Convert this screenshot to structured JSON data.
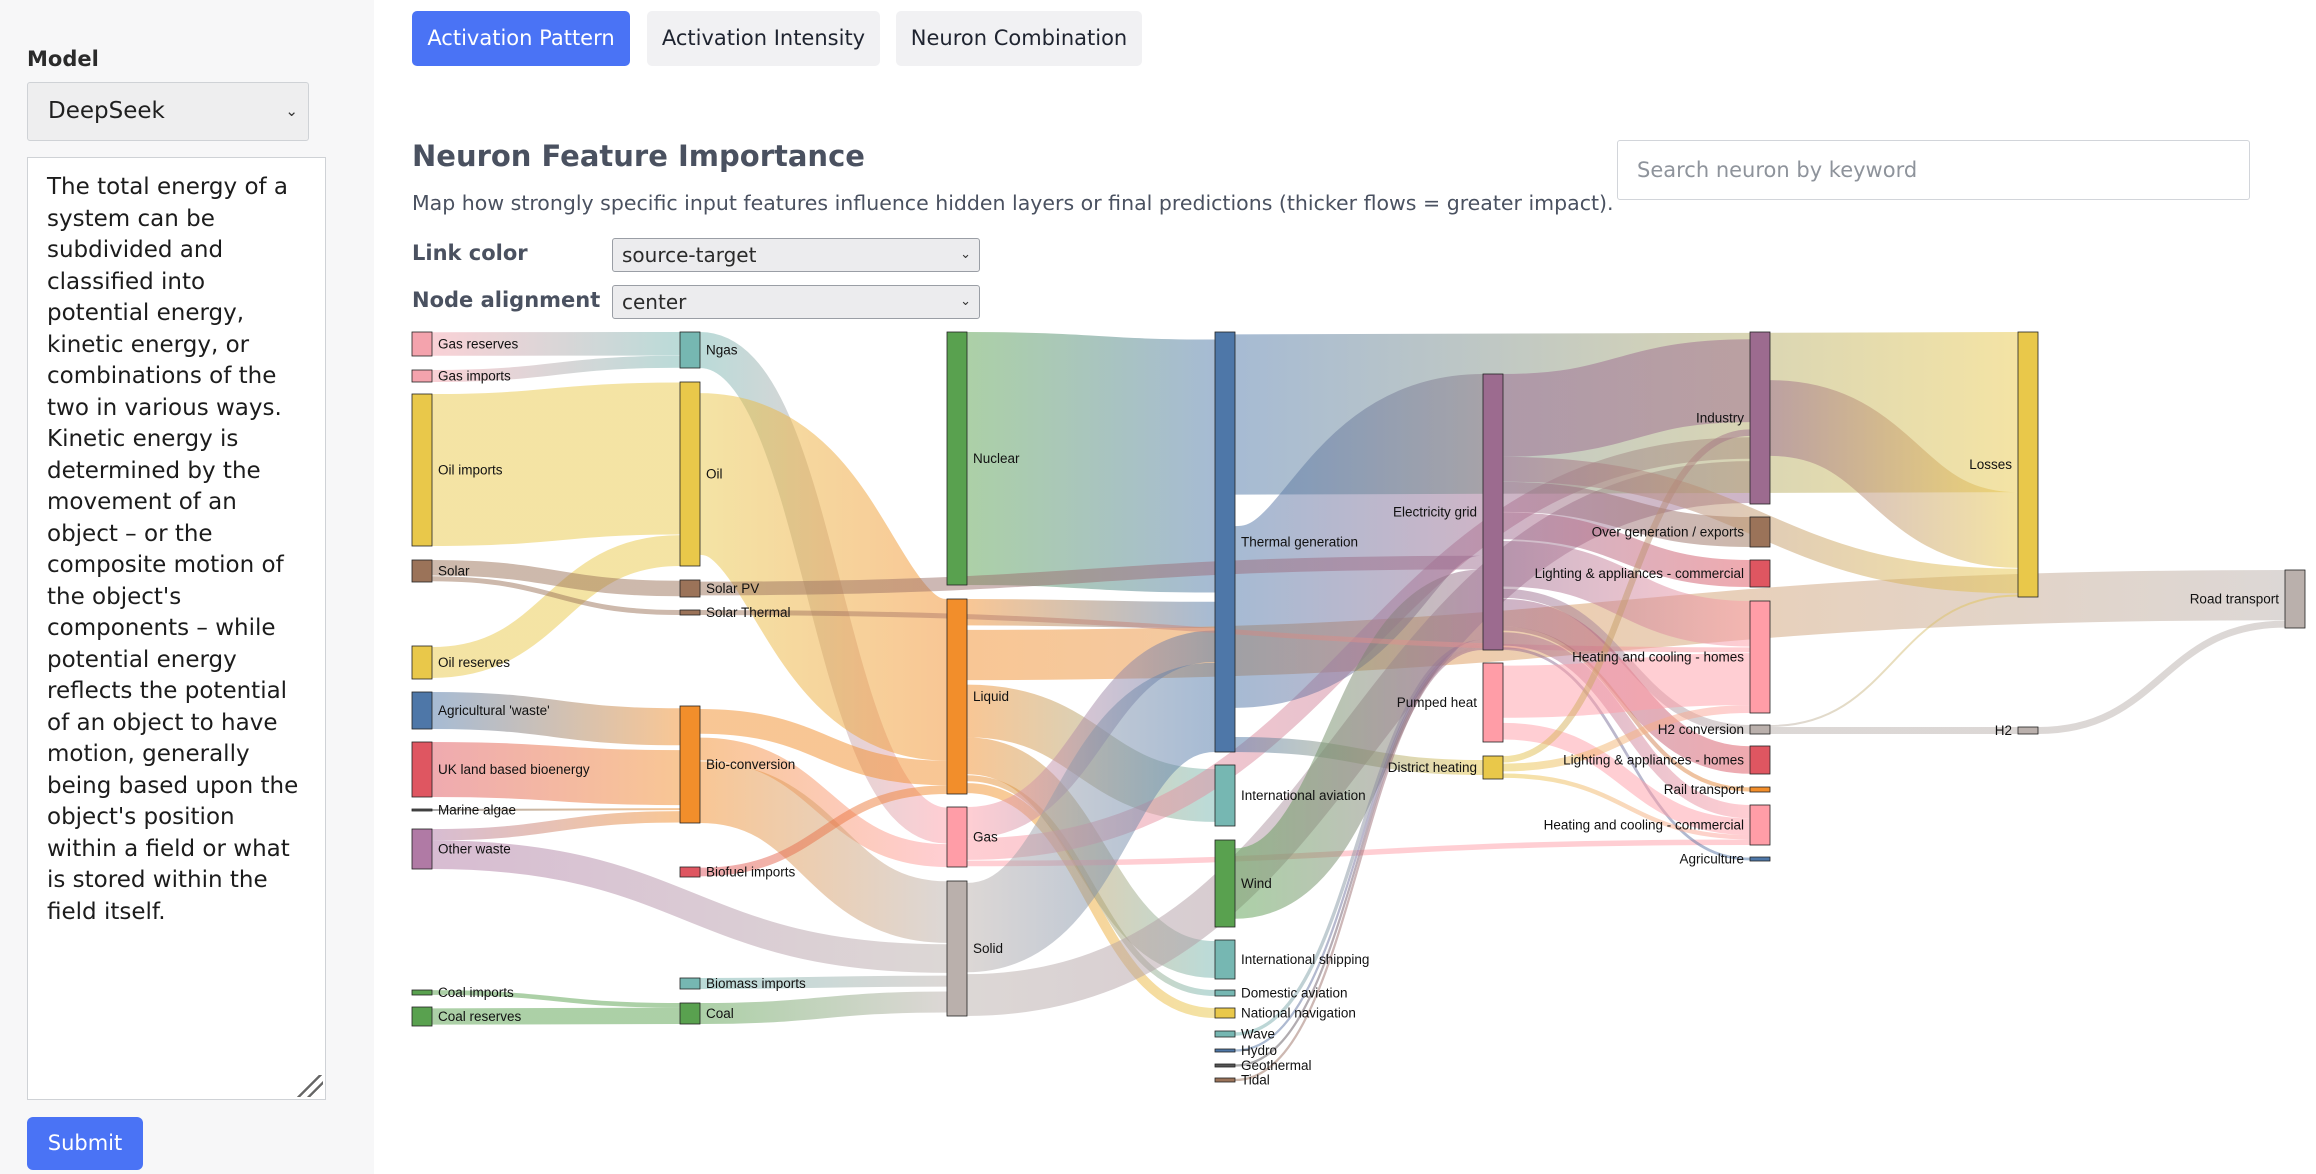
{
  "sidebar": {
    "model_label": "Model",
    "model_value": "DeepSeek",
    "prompt_text": "The total energy of a system can be subdivided and classified into potential energy, kinetic energy, or combinations of the two in various ways. Kinetic energy is determined by the movement of an object – or the composite motion of the object's components – while potential energy reflects the potential of an object to have motion, generally being based upon the object's position within a field or what is stored within the field itself.",
    "submit_label": "Submit"
  },
  "tabs": [
    {
      "label": "Activation Pattern",
      "active": true
    },
    {
      "label": "Activation Intensity",
      "active": false
    },
    {
      "label": "Neuron Combination",
      "active": false
    }
  ],
  "section": {
    "title": "Neuron Feature Importance",
    "description": "Map how strongly specific input features influence hidden layers or final predictions (thicker flows = greater impact)."
  },
  "search": {
    "placeholder": "Search neuron by keyword"
  },
  "controls": {
    "link_color_label": "Link color",
    "link_color_value": "source-target",
    "node_alignment_label": "Node alignment",
    "node_alignment_value": "center"
  },
  "sankey": {
    "nodes": [
      {
        "name": "Gas reserves",
        "color": "#f4a3ad"
      },
      {
        "name": "Gas imports",
        "color": "#f4a3ad"
      },
      {
        "name": "Oil imports",
        "color": "#e9c84a"
      },
      {
        "name": "Solar",
        "color": "#9b7359"
      },
      {
        "name": "Oil reserves",
        "color": "#e9c84a"
      },
      {
        "name": "Agricultural 'waste'",
        "color": "#4e77a8"
      },
      {
        "name": "UK land based bioenergy",
        "color": "#df5661"
      },
      {
        "name": "Marine algae",
        "color": "#555555"
      },
      {
        "name": "Other waste",
        "color": "#b07aa5"
      },
      {
        "name": "Coal imports",
        "color": "#59a14f"
      },
      {
        "name": "Coal reserves",
        "color": "#59a14f"
      },
      {
        "name": "Ngas",
        "color": "#76b7b2"
      },
      {
        "name": "Oil",
        "color": "#e9c84a"
      },
      {
        "name": "Solar PV",
        "color": "#9b7359"
      },
      {
        "name": "Solar Thermal",
        "color": "#9b7359"
      },
      {
        "name": "Bio-conversion",
        "color": "#f28e2b"
      },
      {
        "name": "Biofuel imports",
        "color": "#df5661"
      },
      {
        "name": "Biomass imports",
        "color": "#76b7b2"
      },
      {
        "name": "Coal",
        "color": "#59a14f"
      },
      {
        "name": "Nuclear",
        "color": "#59a14f"
      },
      {
        "name": "Liquid",
        "color": "#f28e2b"
      },
      {
        "name": "Gas",
        "color": "#ff9da7"
      },
      {
        "name": "Solid",
        "color": "#bab0ac"
      },
      {
        "name": "Thermal generation",
        "color": "#4e77a8"
      },
      {
        "name": "International aviation",
        "color": "#76b7b2"
      },
      {
        "name": "Wind",
        "color": "#59a14f"
      },
      {
        "name": "International shipping",
        "color": "#76b7b2"
      },
      {
        "name": "Domestic aviation",
        "color": "#76b7b2"
      },
      {
        "name": "National navigation",
        "color": "#e9c84a"
      },
      {
        "name": "Wave",
        "color": "#76b7b2"
      },
      {
        "name": "Hydro",
        "color": "#4e77a8"
      },
      {
        "name": "Geothermal",
        "color": "#555555"
      },
      {
        "name": "Tidal",
        "color": "#9b7359"
      },
      {
        "name": "Electricity grid",
        "color": "#9c6b8f"
      },
      {
        "name": "Pumped heat",
        "color": "#ff9da7"
      },
      {
        "name": "District heating",
        "color": "#e9c84a"
      },
      {
        "name": "Industry",
        "color": "#9c6b8f"
      },
      {
        "name": "Over generation / exports",
        "color": "#9b7359"
      },
      {
        "name": "Lighting & appliances - commercial",
        "color": "#df5661"
      },
      {
        "name": "Heating and cooling - homes",
        "color": "#ff9da7"
      },
      {
        "name": "H2 conversion",
        "color": "#bab0ac"
      },
      {
        "name": "Lighting & appliances - homes",
        "color": "#df5661"
      },
      {
        "name": "Rail transport",
        "color": "#f28e2b"
      },
      {
        "name": "Heating and cooling - commercial",
        "color": "#ff9da7"
      },
      {
        "name": "Agriculture",
        "color": "#4e77a8"
      },
      {
        "name": "Losses",
        "color": "#e9c84a"
      },
      {
        "name": "H2",
        "color": "#bab0ac"
      },
      {
        "name": "Road transport",
        "color": "#bab0ac"
      }
    ],
    "links": [
      {
        "source": "Gas reserves",
        "target": "Ngas",
        "value": 17
      },
      {
        "source": "Gas imports",
        "target": "Ngas",
        "value": 9
      },
      {
        "source": "Oil imports",
        "target": "Oil",
        "value": 109
      },
      {
        "source": "Oil reserves",
        "target": "Oil",
        "value": 22
      },
      {
        "source": "Solar",
        "target": "Solar PV",
        "value": 12
      },
      {
        "source": "Solar",
        "target": "Solar Thermal",
        "value": 5
      },
      {
        "source": "Agricultural 'waste'",
        "target": "Bio-conversion",
        "value": 27
      },
      {
        "source": "UK land based bioenergy",
        "target": "Bio-conversion",
        "value": 39
      },
      {
        "source": "Marine algae",
        "target": "Bio-conversion",
        "value": 2
      },
      {
        "source": "Other waste",
        "target": "Bio-conversion",
        "value": 8
      },
      {
        "source": "Other waste",
        "target": "Solid",
        "value": 20
      },
      {
        "source": "Coal imports",
        "target": "Coal",
        "value": 4
      },
      {
        "source": "Coal reserves",
        "target": "Coal",
        "value": 14
      },
      {
        "source": "Ngas",
        "target": "Gas",
        "value": 26
      },
      {
        "source": "Oil",
        "target": "Liquid",
        "value": 131
      },
      {
        "source": "Bio-conversion",
        "target": "Liquid",
        "value": 20
      },
      {
        "source": "Bio-conversion",
        "target": "Gas",
        "value": 16
      },
      {
        "source": "Bio-conversion",
        "target": "Solid",
        "value": 40
      },
      {
        "source": "Biofuel imports",
        "target": "Liquid",
        "value": 7
      },
      {
        "source": "Biomass imports",
        "target": "Solid",
        "value": 9
      },
      {
        "source": "Coal",
        "target": "Solid",
        "value": 18
      },
      {
        "source": "Nuclear",
        "target": "Thermal generation",
        "value": 180
      },
      {
        "source": "Liquid",
        "target": "Thermal generation",
        "value": 20
      },
      {
        "source": "Liquid",
        "target": "International aviation",
        "value": 40
      },
      {
        "source": "Liquid",
        "target": "Road transport",
        "value": 45
      },
      {
        "source": "Liquid",
        "target": "International shipping",
        "value": 28
      },
      {
        "source": "Liquid",
        "target": "National navigation",
        "value": 9
      },
      {
        "source": "Liquid",
        "target": "Domestic aviation",
        "value": 6
      },
      {
        "source": "Gas",
        "target": "Thermal generation",
        "value": 22
      },
      {
        "source": "Gas",
        "target": "Industry",
        "value": 15
      },
      {
        "source": "Gas",
        "target": "Heating and cooling - commercial",
        "value": 5
      },
      {
        "source": "Solid",
        "target": "Thermal generation",
        "value": 60
      },
      {
        "source": "Solid",
        "target": "Industry",
        "value": 27
      },
      {
        "source": "Thermal generation",
        "target": "Electricity grid",
        "value": 160
      },
      {
        "source": "Thermal generation",
        "target": "Losses",
        "value": 110
      },
      {
        "source": "Thermal generation",
        "target": "District heating",
        "value": 10
      },
      {
        "source": "Wind",
        "target": "Electricity grid",
        "value": 62
      },
      {
        "source": "Wave",
        "target": "Electricity grid",
        "value": 3
      },
      {
        "source": "Hydro",
        "target": "Electricity grid",
        "value": 2
      },
      {
        "source": "Geothermal",
        "target": "Electricity grid",
        "value": 2
      },
      {
        "source": "Tidal",
        "target": "Electricity grid",
        "value": 2
      },
      {
        "source": "Solar PV",
        "target": "Electricity grid",
        "value": 12
      },
      {
        "source": "Solar Thermal",
        "target": "Heating and cooling - homes",
        "value": 5
      },
      {
        "source": "Electricity grid",
        "target": "Industry",
        "value": 60
      },
      {
        "source": "Electricity grid",
        "target": "Over generation / exports",
        "value": 22
      },
      {
        "source": "Electricity grid",
        "target": "Lighting & appliances - commercial",
        "value": 20
      },
      {
        "source": "Electricity grid",
        "target": "Heating and cooling - homes",
        "value": 35
      },
      {
        "source": "Electricity grid",
        "target": "H2 conversion",
        "value": 8
      },
      {
        "source": "Electricity grid",
        "target": "Lighting & appliances - homes",
        "value": 20
      },
      {
        "source": "Electricity grid",
        "target": "Rail transport",
        "value": 3
      },
      {
        "source": "Electricity grid",
        "target": "Heating and cooling - commercial",
        "value": 12
      },
      {
        "source": "Electricity grid",
        "target": "Agriculture",
        "value": 2
      },
      {
        "source": "Electricity grid",
        "target": "Losses",
        "value": 18
      },
      {
        "source": "Pumped heat",
        "target": "Heating and cooling - homes",
        "value": 40
      },
      {
        "source": "Pumped heat",
        "target": "Heating and cooling - commercial",
        "value": 15
      },
      {
        "source": "District heating",
        "target": "Heating and cooling - homes",
        "value": 6
      },
      {
        "source": "District heating",
        "target": "Industry",
        "value": 4
      },
      {
        "source": "District heating",
        "target": "Heating and cooling - commercial",
        "value": 4
      },
      {
        "source": "Industry",
        "target": "Losses",
        "value": 52
      },
      {
        "source": "H2 conversion",
        "target": "H2",
        "value": 7
      },
      {
        "source": "H2 conversion",
        "target": "Losses",
        "value": 2
      },
      {
        "source": "H2",
        "target": "Road transport",
        "value": 7
      }
    ]
  }
}
